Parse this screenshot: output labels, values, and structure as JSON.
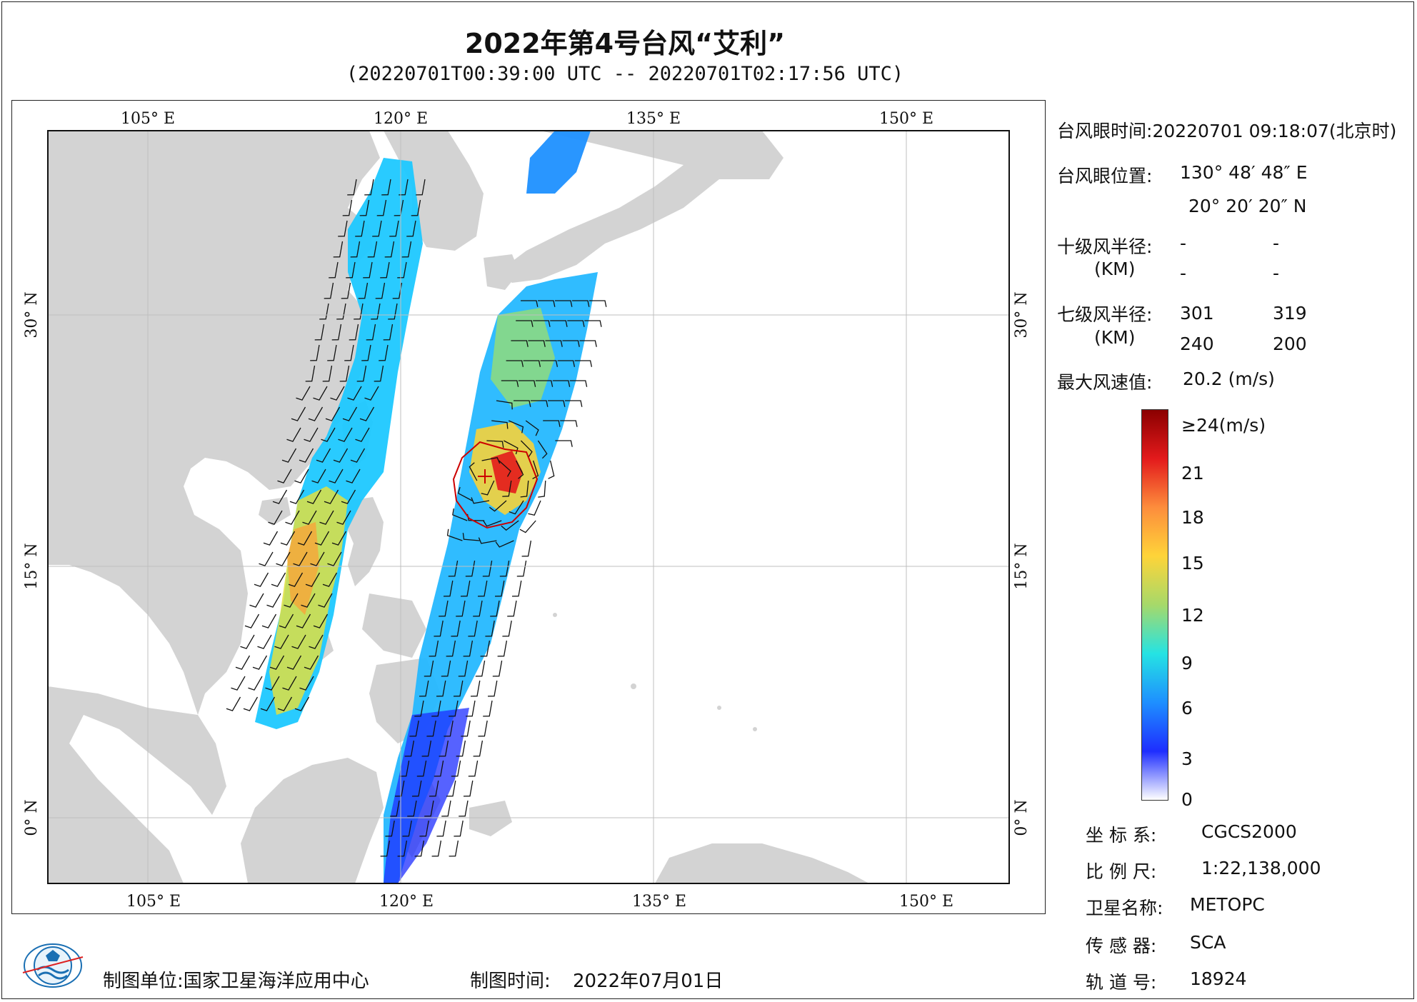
{
  "title": "2022年第4号台风“艾利”",
  "subtitle": "(20220701T00:39:00 UTC -- 20220701T02:17:56 UTC)",
  "map": {
    "lon_labels": [
      "105° E",
      "120° E",
      "135° E",
      "150° E"
    ],
    "lat_labels": [
      "30° N",
      "15° N",
      "0° N"
    ],
    "lon_range": [
      96,
      153
    ],
    "lat_range": [
      -4,
      41
    ],
    "eye_marker": {
      "lon": 130.81,
      "lat": 20.34
    },
    "colors": {
      "land": "#d3d3d3",
      "sea": "#ffffff",
      "grid": "#bfbfbf",
      "radius": "#cc0000"
    }
  },
  "info": {
    "eye_time_label": "台风眼时间:",
    "eye_time_value": "20220701 09:18:07(北京时)",
    "eye_pos_label": "台风眼位置:",
    "eye_lon": "130° 48′ 48″ E",
    "eye_lat": "20° 20′ 20″ N",
    "r10_label": "十级风半径:",
    "r10_unit": "(KM)",
    "r10_values": [
      "-",
      "-",
      "-",
      "-"
    ],
    "r7_label": "七级风半径:",
    "r7_unit": "(KM)",
    "r7_values": [
      "301",
      "319",
      "240",
      "200"
    ],
    "max_wind_label": "最大风速值:",
    "max_wind_value": "20.2 (m/s)"
  },
  "colorbar": {
    "labels": [
      "≥24(m/s)",
      "21",
      "18",
      "15",
      "12",
      "9",
      "6",
      "3",
      "0"
    ],
    "stops": [
      24,
      21,
      18,
      15,
      12,
      9,
      6,
      3,
      0
    ],
    "colors": [
      "#8b0000",
      "#e31a1c",
      "#fd8d3c",
      "#fed439",
      "#a6d96a",
      "#25e3e3",
      "#1e8fff",
      "#1e2eff",
      "#ffffff"
    ]
  },
  "meta": {
    "coord_label": "坐 标 系:",
    "coord_value": "CGCS2000",
    "scale_label": "比 例 尺:",
    "scale_value": "1:22,138,000",
    "satellite_label": "卫星名称:",
    "satellite_value": "METOPC",
    "sensor_label": "传 感 器:",
    "sensor_value": "SCA",
    "orbit_label": "轨 道 号:",
    "orbit_value": "18924"
  },
  "footer": {
    "unit_label": "制图单位:",
    "unit_value": "国家卫星海洋应用中心",
    "time_label": "制图时间:",
    "time_value": "2022年07月01日"
  }
}
